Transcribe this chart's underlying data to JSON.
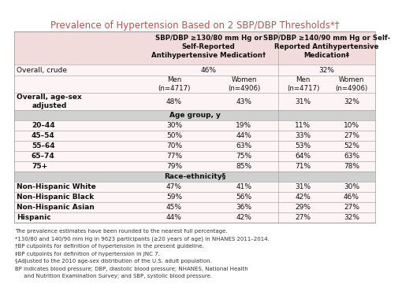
{
  "title": "Prevalence of Hypertension Based on 2 SBP/DBP Thresholds*†",
  "title_color": "#c0504d",
  "bg_color": "#ffffff",
  "table_bg": "#fdf5f5",
  "header_bg": "#f2dcdb",
  "section_bg": "#d0d0d0",
  "col_header1_l1": "SBP/DBP ≥130/80 mm Hg or",
  "col_header1_l2": "Self-Reported",
  "col_header1_l3": "Antihypertensive Medication†",
  "col_header2_l1": "SBP/DBP ≥140/90 mm Hg or Self-",
  "col_header2_l2": "Reported Antihypertensive",
  "col_header2_l3": "Medication‡",
  "overall_crude_val1": "46%",
  "overall_crude_val2": "32%",
  "subheaders": [
    "Men\n(n=4717)",
    "Women\n(n=4906)",
    "Men\n(n=4717)",
    "Women\n(n=4906)"
  ],
  "overall_adj_label": "Overall, age-sex\nadjusted",
  "overall_adj_vals": [
    "48%",
    "43%",
    "31%",
    "32%"
  ],
  "age_section_label": "Age group, y",
  "age_rows": [
    [
      "20–44",
      "30%",
      "19%",
      "11%",
      "10%"
    ],
    [
      "45–54",
      "50%",
      "44%",
      "33%",
      "27%"
    ],
    [
      "55–64",
      "70%",
      "63%",
      "53%",
      "52%"
    ],
    [
      "65–74",
      "77%",
      "75%",
      "64%",
      "63%"
    ],
    [
      "75+",
      "79%",
      "85%",
      "71%",
      "78%"
    ]
  ],
  "race_section_label": "Race-ethnicity§",
  "race_rows": [
    [
      "Non-Hispanic White",
      "47%",
      "41%",
      "31%",
      "30%"
    ],
    [
      "Non-Hispanic Black",
      "59%",
      "56%",
      "42%",
      "46%"
    ],
    [
      "Non-Hispanic Asian",
      "45%",
      "36%",
      "29%",
      "27%"
    ],
    [
      "Hispanic",
      "44%",
      "42%",
      "27%",
      "32%"
    ]
  ],
  "footnotes": [
    "The prevalence estimates have been rounded to the nearest full percentage.",
    "*130/80 and 140/90 mm Hg in 9623 participants (≥20 years of age) in NHANES 2011–2014.",
    "†BP cutpoints for definition of hypertension in the present guideline.",
    "‡BP cutpoints for definition of hypertension in JNC 7.",
    "§Adjusted to the 2010 age-sex distribution of the U.S. adult population.",
    "BP indicates blood pressure; DBP, diastolic blood pressure; NHANES, National Health",
    "     and Nutrition Examination Survey; and SBP, systolic blood pressure."
  ]
}
